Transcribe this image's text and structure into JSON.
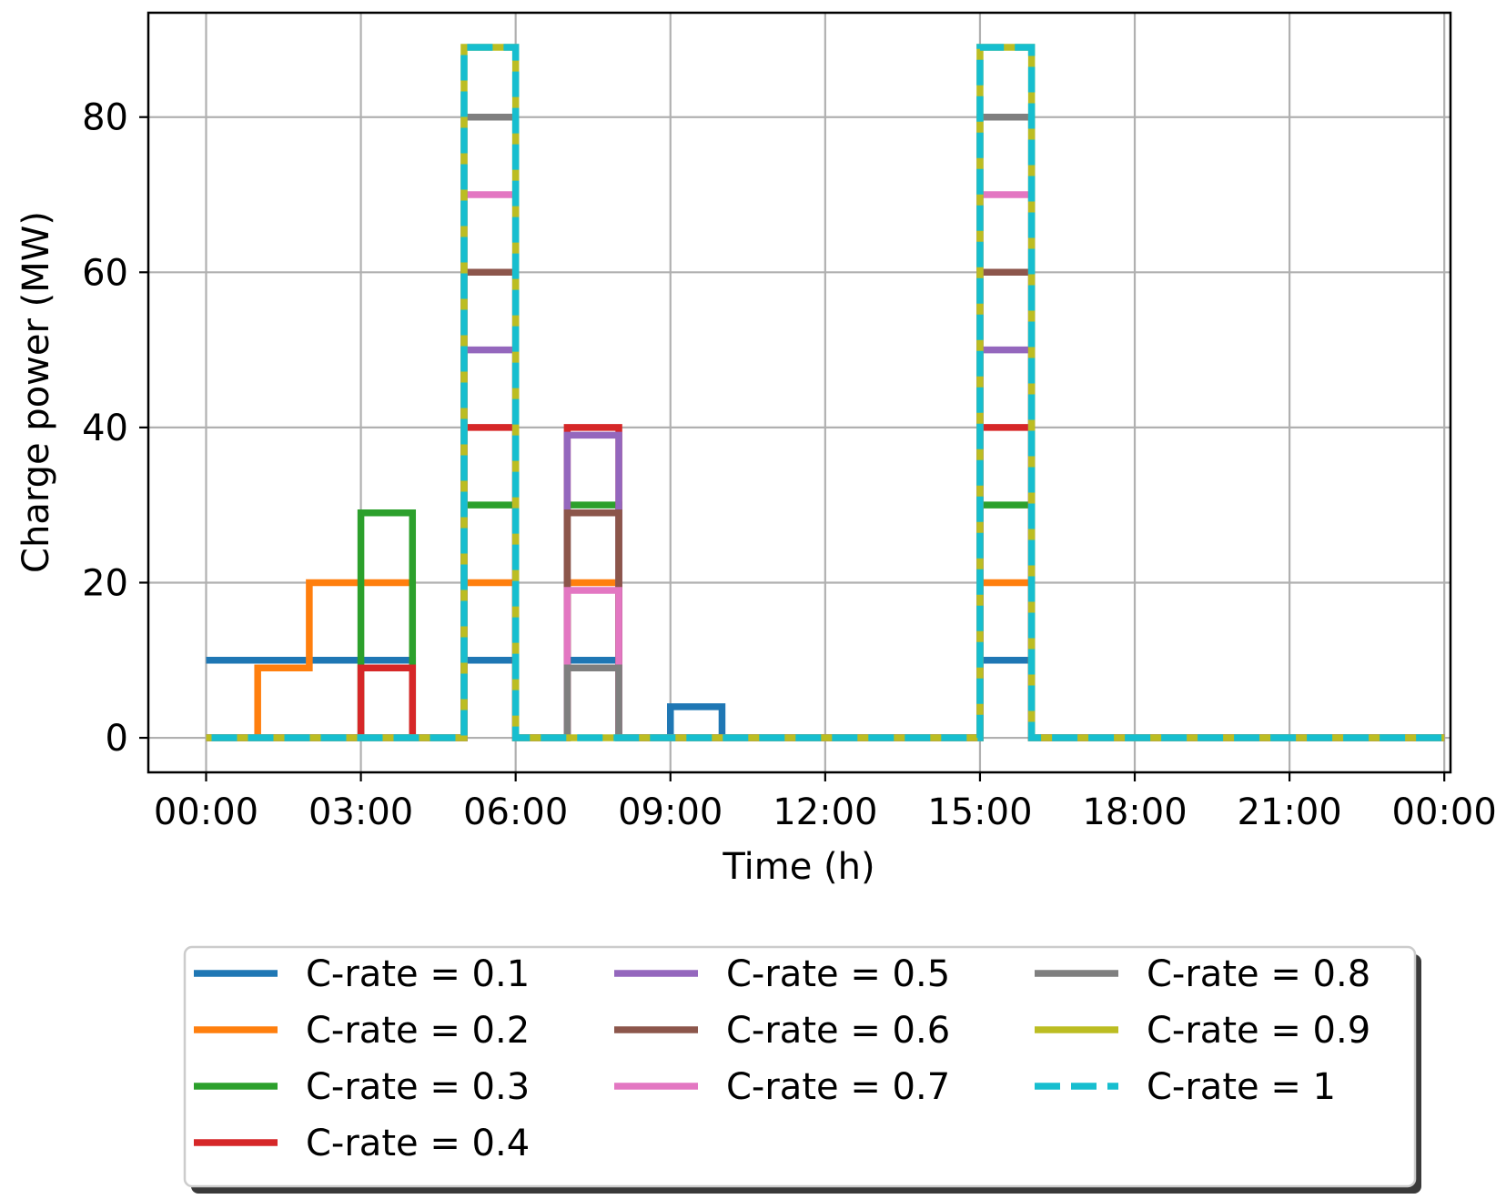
{
  "chart_data": {
    "type": "line",
    "step": "post",
    "xlabel": "Time (h)",
    "ylabel": "Charge power (MW)",
    "xlim": [
      -1.12,
      24.12
    ],
    "ylim": [
      -4.45,
      93.45
    ],
    "xticks": [
      0,
      3,
      6,
      9,
      12,
      15,
      18,
      21,
      24
    ],
    "xtick_labels": [
      "00:00",
      "03:00",
      "06:00",
      "09:00",
      "12:00",
      "15:00",
      "18:00",
      "21:00",
      "00:00"
    ],
    "yticks": [
      0,
      20,
      40,
      60,
      80
    ],
    "ytick_labels": [
      "0",
      "20",
      "40",
      "60",
      "80"
    ],
    "grid": true,
    "legend_position": "below plot, 3 columns",
    "x": [
      0,
      1,
      2,
      3,
      4,
      5,
      6,
      7,
      8,
      9,
      10,
      11,
      12,
      13,
      14,
      15,
      16,
      17,
      18,
      19,
      20,
      21,
      22,
      23
    ],
    "series": [
      {
        "name": "C-rate = 0.1",
        "color": "#1f77b4",
        "dashed": false,
        "values": [
          10,
          10,
          10,
          10,
          0,
          10,
          0,
          10,
          0,
          4,
          0,
          0,
          0,
          0,
          0,
          10,
          0,
          0,
          0,
          0,
          0,
          0,
          0,
          0
        ]
      },
      {
        "name": "C-rate = 0.2",
        "color": "#ff7f0e",
        "dashed": false,
        "values": [
          0,
          9,
          20,
          20,
          0,
          20,
          0,
          20,
          0,
          0,
          0,
          0,
          0,
          0,
          0,
          20,
          0,
          0,
          0,
          0,
          0,
          0,
          0,
          0
        ]
      },
      {
        "name": "C-rate = 0.3",
        "color": "#2ca02c",
        "dashed": false,
        "values": [
          0,
          0,
          0,
          29,
          0,
          30,
          0,
          30,
          0,
          0,
          0,
          0,
          0,
          0,
          0,
          30,
          0,
          0,
          0,
          0,
          0,
          0,
          0,
          0
        ]
      },
      {
        "name": "C-rate = 0.4",
        "color": "#d62728",
        "dashed": false,
        "values": [
          0,
          0,
          0,
          9,
          0,
          40,
          0,
          40,
          0,
          0,
          0,
          0,
          0,
          0,
          0,
          40,
          0,
          0,
          0,
          0,
          0,
          0,
          0,
          0
        ]
      },
      {
        "name": "C-rate = 0.5",
        "color": "#9467bd",
        "dashed": false,
        "values": [
          0,
          0,
          0,
          0,
          0,
          50,
          0,
          39,
          0,
          0,
          0,
          0,
          0,
          0,
          0,
          50,
          0,
          0,
          0,
          0,
          0,
          0,
          0,
          0
        ]
      },
      {
        "name": "C-rate = 0.6",
        "color": "#8c564b",
        "dashed": false,
        "values": [
          0,
          0,
          0,
          0,
          0,
          60,
          0,
          29,
          0,
          0,
          0,
          0,
          0,
          0,
          0,
          60,
          0,
          0,
          0,
          0,
          0,
          0,
          0,
          0
        ]
      },
      {
        "name": "C-rate = 0.7",
        "color": "#e377c2",
        "dashed": false,
        "values": [
          0,
          0,
          0,
          0,
          0,
          70,
          0,
          19,
          0,
          0,
          0,
          0,
          0,
          0,
          0,
          70,
          0,
          0,
          0,
          0,
          0,
          0,
          0,
          0
        ]
      },
      {
        "name": "C-rate = 0.8",
        "color": "#7f7f7f",
        "dashed": false,
        "values": [
          0,
          0,
          0,
          0,
          0,
          80,
          0,
          9,
          0,
          0,
          0,
          0,
          0,
          0,
          0,
          80,
          0,
          0,
          0,
          0,
          0,
          0,
          0,
          0
        ]
      },
      {
        "name": "C-rate = 0.9",
        "color": "#bcbd22",
        "dashed": false,
        "values": [
          0,
          0,
          0,
          0,
          0,
          89,
          0,
          0,
          0,
          0,
          0,
          0,
          0,
          0,
          0,
          89,
          0,
          0,
          0,
          0,
          0,
          0,
          0,
          0
        ]
      },
      {
        "name": "C-rate = 1",
        "color": "#17becf",
        "dashed": true,
        "values": [
          0,
          0,
          0,
          0,
          0,
          89,
          0,
          0,
          0,
          0,
          0,
          0,
          0,
          0,
          0,
          89,
          0,
          0,
          0,
          0,
          0,
          0,
          0,
          0
        ]
      }
    ]
  }
}
